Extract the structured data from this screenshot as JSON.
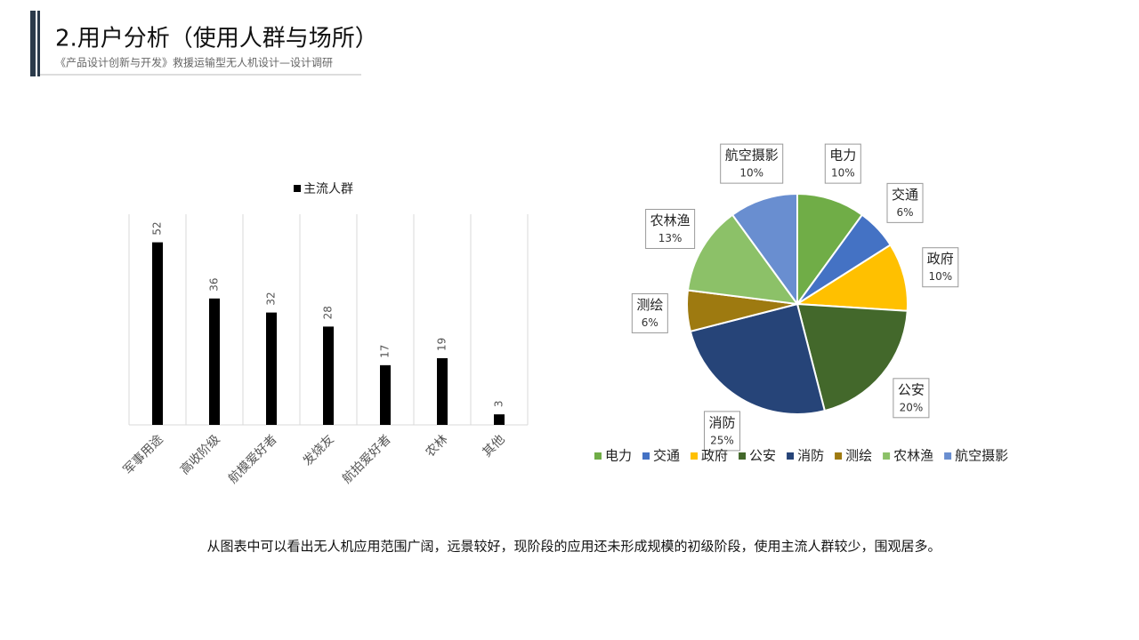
{
  "header": {
    "title": "2.用户分析（使用人群与场所）",
    "subtitle": "《产品设计创新与开发》救援运输型无人机设计—设计调研"
  },
  "chart_data": [
    {
      "type": "bar",
      "categories": [
        "军事用途",
        "高收阶级",
        "航模爱好者",
        "发烧友",
        "航拍爱好者",
        "农林",
        "其他"
      ],
      "series": [
        {
          "name": "主流人群",
          "color": "#000000",
          "values": [
            52,
            36,
            32,
            28,
            17,
            19,
            3
          ]
        }
      ],
      "ylim": [
        0,
        60
      ]
    },
    {
      "type": "pie",
      "categories": [
        "电力",
        "交通",
        "政府",
        "公安",
        "消防",
        "测绘",
        "农林渔",
        "航空摄影"
      ],
      "values": [
        10,
        6,
        10,
        20,
        25,
        6,
        13,
        10
      ],
      "value_labels": [
        "10%",
        "6%",
        "10%",
        "20%",
        "25%",
        "6%",
        "13%",
        "10%"
      ],
      "colors": [
        "#70ad47",
        "#4472c4",
        "#ffc000",
        "#43682b",
        "#264478",
        "#9e7a10",
        "#8cc168",
        "#698ed0"
      ]
    }
  ],
  "caption": "从图表中可以看出无人机应用范围广阔，远景较好，现阶段的应用还未形成规模的初级阶段，使用主流人群较少，围观居多。"
}
